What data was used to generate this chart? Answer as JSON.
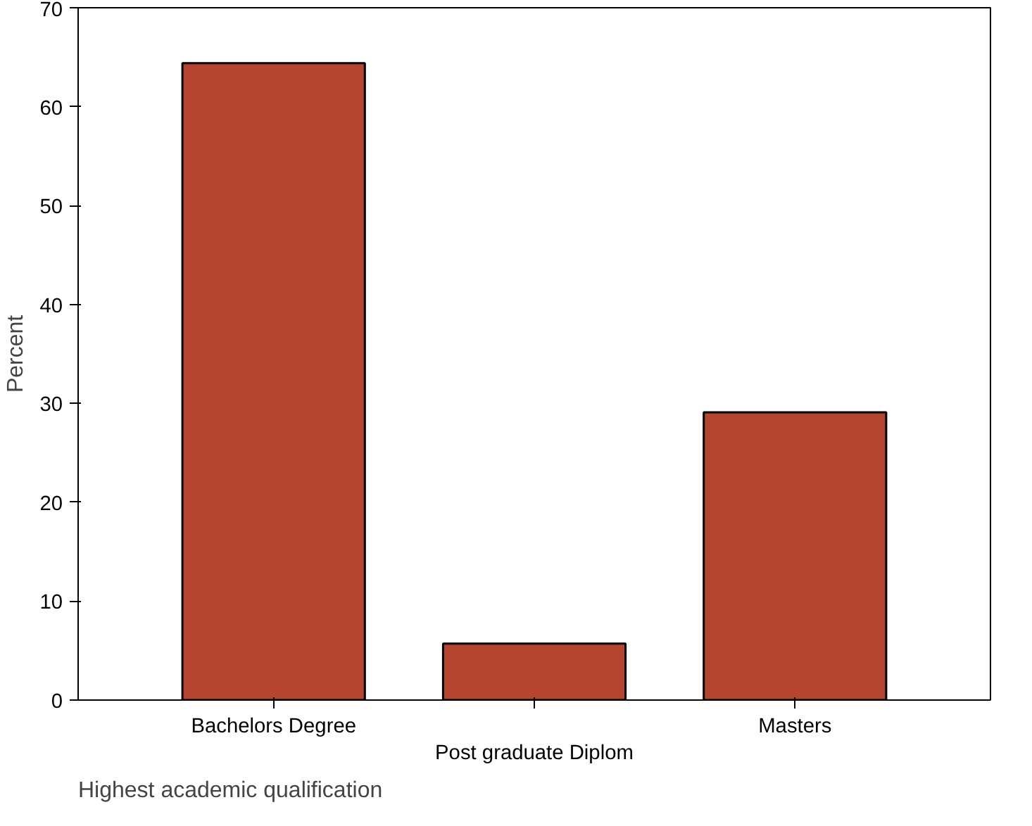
{
  "chart_data": {
    "type": "bar",
    "title": "Highest academic qualification",
    "ylabel": "Percent",
    "categories": [
      "Bachelors Degree",
      "Post graduate Diplom",
      "Masters"
    ],
    "values": [
      64.4,
      5.7,
      29.1
    ],
    "color": "#b5452f",
    "ylim": [
      0,
      70
    ],
    "yticks": [
      0,
      10,
      20,
      30,
      40,
      50,
      60,
      70
    ],
    "grid": false
  }
}
